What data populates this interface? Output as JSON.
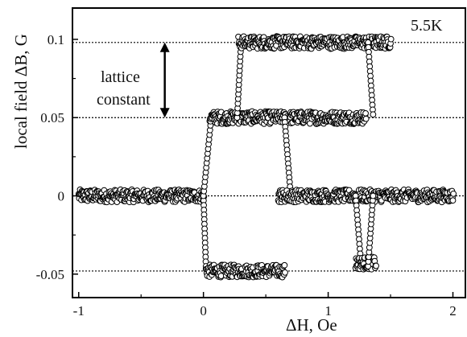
{
  "chart_data": {
    "type": "scatter",
    "xlabel": "ΔH,  Oe",
    "ylabel": "local field ΔB, G",
    "xlim": [
      -1.05,
      2.1
    ],
    "ylim": [
      -0.065,
      0.12
    ],
    "x_ticks": [
      -1,
      0,
      1,
      2
    ],
    "x_tick_labels": [
      "-1",
      "0",
      "1",
      "2"
    ],
    "y_ticks": [
      -0.05,
      0,
      0.05,
      0.1
    ],
    "y_tick_labels": [
      "-0.05",
      "0",
      "0.05",
      "0.1"
    ],
    "reference_lines_y": [
      -0.048,
      0,
      0.05,
      0.098
    ],
    "grid": false,
    "marker": "open-circle",
    "annotations": {
      "temperature": "5.5K",
      "lattice_line1": "lattice",
      "lattice_line2": "constant",
      "arrow_from": 0.05,
      "arrow_to": 0.098,
      "arrow_x": -0.31
    },
    "series": [
      {
        "segments": [
          {
            "x_start": -1.0,
            "x_end": 0.0,
            "y": 0.0,
            "noise": 0.004
          },
          {
            "x_start": 0.0,
            "x_end": 0.02,
            "y_start": 0.0,
            "y_end": -0.045
          },
          {
            "x_start": 0.02,
            "x_end": 0.65,
            "y": -0.048,
            "noise": 0.004
          },
          {
            "x_start": 0.0,
            "x_end": 0.06,
            "y_start": 0.0,
            "y_end": 0.048
          },
          {
            "x_start": 0.05,
            "x_end": 1.3,
            "y": 0.05,
            "noise": 0.004
          },
          {
            "x_start": 0.27,
            "x_end": 0.3,
            "y_start": 0.05,
            "y_end": 0.095
          },
          {
            "x_start": 0.28,
            "x_end": 1.5,
            "y": 0.098,
            "noise": 0.004
          },
          {
            "x_start": 1.32,
            "x_end": 1.36,
            "y_start": 0.098,
            "y_end": 0.052
          },
          {
            "x_start": 0.65,
            "x_end": 0.7,
            "y_start": 0.05,
            "y_end": 0.0
          },
          {
            "x_start": 0.6,
            "x_end": 2.0,
            "y": 0.0,
            "noise": 0.004
          },
          {
            "x_start": 1.22,
            "x_end": 1.26,
            "y_start": 0.0,
            "y_end": -0.04
          },
          {
            "x_start": 1.22,
            "x_end": 1.38,
            "y": -0.043,
            "noise": 0.004
          },
          {
            "x_start": 1.32,
            "x_end": 1.36,
            "y_start": -0.045,
            "y_end": 0.0
          }
        ]
      }
    ]
  }
}
